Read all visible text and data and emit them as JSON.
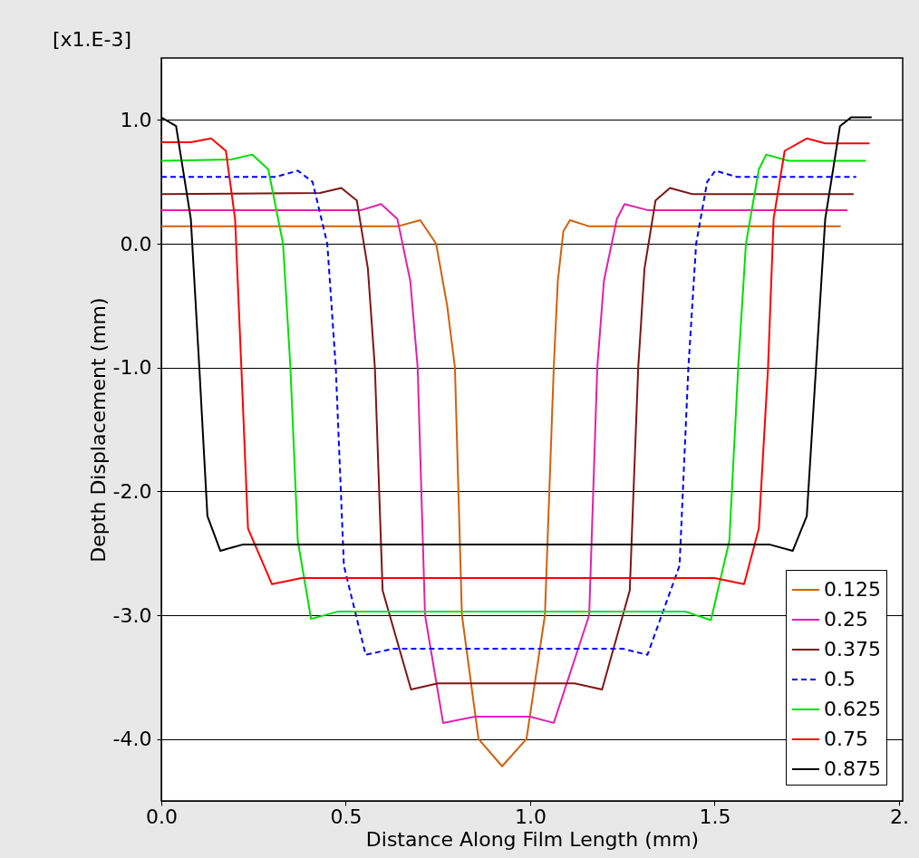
{
  "chart_data": {
    "type": "line",
    "xlabel": "Distance Along Film Length (mm)",
    "ylabel": "Depth Displacement (mm)",
    "annotations": [
      "[x1.E-3]"
    ],
    "xlim": [
      0,
      2.01
    ],
    "ylim": [
      -4.5,
      1.5
    ],
    "xticks": [
      {
        "value": 0,
        "label": "0.0"
      },
      0.5,
      {
        "value": 1,
        "label": "1.0"
      },
      1.5,
      {
        "value": 2,
        "label": "2."
      }
    ],
    "yticks": [
      {
        "value": -4,
        "label": "-4.0"
      },
      {
        "value": -3,
        "label": "-3.0"
      },
      {
        "value": -2,
        "label": "-2.0"
      },
      {
        "value": -1,
        "label": "-1.0"
      },
      {
        "value": 0,
        "label": "0.0"
      },
      {
        "value": 1,
        "label": "1.0"
      }
    ],
    "grid": "y",
    "legend": "bottom right",
    "marker": "none",
    "series": [
      {
        "name": "0.125",
        "color": "#d2600a",
        "line_style": "solid",
        "x": [
          0,
          0.64,
          0.702,
          0.745,
          0.775,
          0.796,
          0.815,
          0.86,
          0.924,
          0.99,
          1.04,
          1.064,
          1.075,
          1.09,
          1.108,
          1.16,
          1.842
        ],
        "values": [
          0.14,
          0.14,
          0.19,
          0.0,
          -0.5,
          -1.0,
          -3.0,
          -4.0,
          -4.22,
          -4.0,
          -3.0,
          -1.0,
          -0.3,
          0.1,
          0.19,
          0.14,
          0.14
        ]
      },
      {
        "name": "0.25",
        "color": "#e020b0",
        "line_style": "solid",
        "x": [
          0,
          0.54,
          0.596,
          0.64,
          0.675,
          0.695,
          0.715,
          0.764,
          0.85,
          0.93,
          1.0,
          1.064,
          1.16,
          1.182,
          1.2,
          1.235,
          1.256,
          1.32,
          1.86
        ],
        "values": [
          0.27,
          0.27,
          0.32,
          0.2,
          -0.3,
          -1.0,
          -3.0,
          -3.87,
          -3.82,
          -3.82,
          -3.82,
          -3.87,
          -3.0,
          -1.0,
          -0.3,
          0.2,
          0.32,
          0.27,
          0.27
        ]
      },
      {
        "name": "0.375",
        "color": "#801515",
        "line_style": "solid",
        "x": [
          0,
          0.43,
          0.488,
          0.53,
          0.56,
          0.579,
          0.6,
          0.677,
          0.75,
          1.12,
          1.195,
          1.27,
          1.293,
          1.31,
          1.34,
          1.379,
          1.44,
          1.877
        ],
        "values": [
          0.4,
          0.41,
          0.45,
          0.35,
          -0.2,
          -1.0,
          -2.8,
          -3.6,
          -3.55,
          -3.55,
          -3.6,
          -2.8,
          -1.0,
          -0.2,
          0.35,
          0.45,
          0.4,
          0.4
        ]
      },
      {
        "name": "0.5",
        "color": "#0000ff",
        "line_style": "dashed",
        "x": [
          0,
          0.31,
          0.37,
          0.41,
          0.45,
          0.473,
          0.495,
          0.554,
          0.63,
          1.25,
          1.318,
          1.405,
          1.429,
          1.45,
          1.48,
          1.502,
          1.56,
          1.884
        ],
        "values": [
          0.54,
          0.54,
          0.59,
          0.5,
          0.0,
          -1.0,
          -2.6,
          -3.32,
          -3.27,
          -3.27,
          -3.32,
          -2.6,
          -1.0,
          0.0,
          0.5,
          0.59,
          0.54,
          0.54
        ]
      },
      {
        "name": "0.625",
        "color": "#00e000",
        "line_style": "solid",
        "x": [
          0,
          0.19,
          0.246,
          0.29,
          0.33,
          0.35,
          0.37,
          0.406,
          0.48,
          1.42,
          1.49,
          1.54,
          1.564,
          1.585,
          1.62,
          1.64,
          1.7,
          1.91
        ],
        "values": [
          0.67,
          0.68,
          0.72,
          0.6,
          0.0,
          -1.0,
          -2.4,
          -3.03,
          -2.97,
          -2.97,
          -3.04,
          -2.4,
          -1.0,
          0.0,
          0.6,
          0.72,
          0.67,
          0.67
        ]
      },
      {
        "name": "0.75",
        "color": "#ff0000",
        "line_style": "solid",
        "x": [
          0,
          0.08,
          0.135,
          0.175,
          0.2,
          0.217,
          0.235,
          0.3,
          0.38,
          1.5,
          1.58,
          1.62,
          1.645,
          1.66,
          1.69,
          1.75,
          1.8,
          1.92
        ],
        "values": [
          0.82,
          0.82,
          0.85,
          0.75,
          0.2,
          -1.0,
          -2.3,
          -2.75,
          -2.7,
          -2.7,
          -2.75,
          -2.3,
          -1.0,
          0.2,
          0.75,
          0.85,
          0.81,
          0.81
        ]
      },
      {
        "name": "0.875",
        "color": "#000000",
        "line_style": "solid",
        "x": [
          0,
          0.04,
          0.08,
          0.103,
          0.125,
          0.16,
          0.22,
          0.93,
          1.65,
          1.712,
          1.75,
          1.775,
          1.8,
          1.84,
          1.87,
          1.926
        ],
        "values": [
          1.02,
          0.95,
          0.2,
          -1.0,
          -2.2,
          -2.48,
          -2.43,
          -2.43,
          -2.43,
          -2.48,
          -2.2,
          -1.0,
          0.2,
          0.95,
          1.02,
          1.02
        ]
      }
    ]
  }
}
